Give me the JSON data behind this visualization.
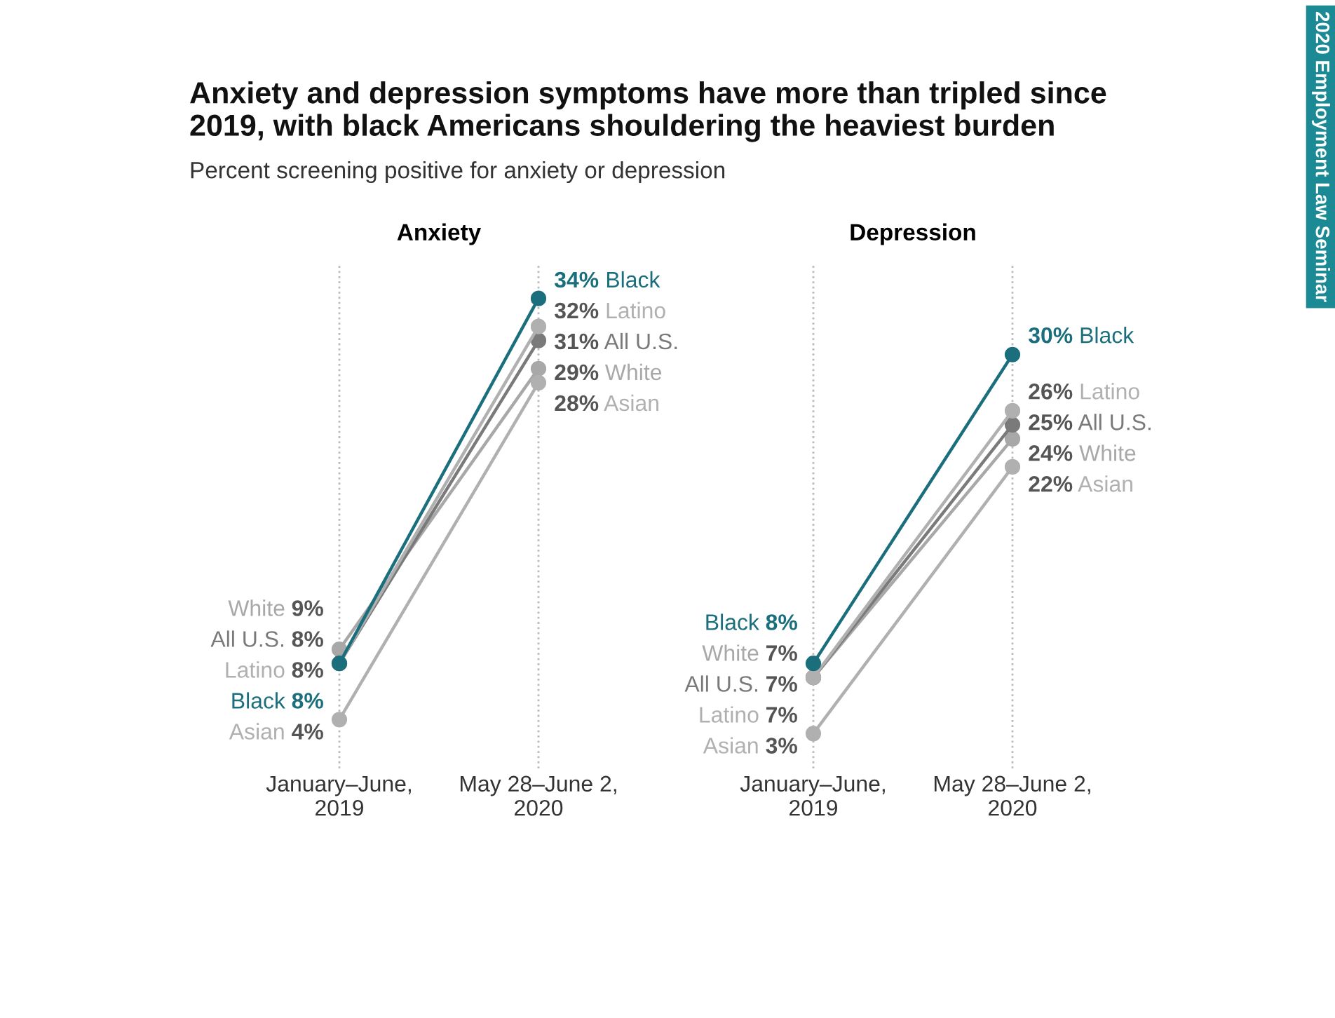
{
  "chart_data": [
    {
      "type": "line",
      "title": "Anxiety",
      "categories": [
        "January–June,\n2019",
        "May 28–June 2,\n2020"
      ],
      "grid": "x",
      "marker": "circle",
      "tick_labels": "x",
      "annotations": [
        "Anxiety and depression symptoms have more than tripled since\n2019, with black Americans shouldering the heaviest burden",
        "Percent screening positive for anxiety or depression",
        "2020 Employment Law Seminar"
      ],
      "series": [
        {
          "name": "White",
          "color": "#a8a8a8",
          "values": [
            9,
            29
          ],
          "value_labels": [
            "9%",
            "29%"
          ]
        },
        {
          "name": "All U.S.",
          "color": "#7a7a7a",
          "values": [
            8,
            31
          ],
          "value_labels": [
            "8%",
            "31%"
          ]
        },
        {
          "name": "Latino",
          "color": "#b0b0b0",
          "values": [
            8,
            32
          ],
          "value_labels": [
            "8%",
            "32%"
          ]
        },
        {
          "name": "Black",
          "color": "#1b6f7c",
          "values": [
            8,
            34
          ],
          "value_labels": [
            "8%",
            "34%"
          ]
        },
        {
          "name": "Asian",
          "color": "#b0b0b0",
          "values": [
            4,
            28
          ],
          "value_labels": [
            "4%",
            "28%"
          ]
        }
      ]
    },
    {
      "type": "line",
      "title": "Depression",
      "categories": [
        "January–June,\n2019",
        "May 28–June 2,\n2020"
      ],
      "grid": "x",
      "marker": "circle",
      "tick_labels": "x",
      "series": [
        {
          "name": "White",
          "color": "#a8a8a8",
          "values": [
            7,
            24
          ],
          "value_labels": [
            "7%",
            "24%"
          ]
        },
        {
          "name": "All U.S.",
          "color": "#7a7a7a",
          "values": [
            7,
            25
          ],
          "value_labels": [
            "7%",
            "25%"
          ]
        },
        {
          "name": "Latino",
          "color": "#b0b0b0",
          "values": [
            7,
            26
          ],
          "value_labels": [
            "7%",
            "26%"
          ]
        },
        {
          "name": "Black",
          "color": "#1b6f7c",
          "values": [
            8,
            30
          ],
          "value_labels": [
            "8%",
            "30%"
          ]
        },
        {
          "name": "Asian",
          "color": "#b0b0b0",
          "values": [
            3,
            22
          ],
          "value_labels": [
            "3%",
            "22%"
          ]
        }
      ]
    }
  ]
}
